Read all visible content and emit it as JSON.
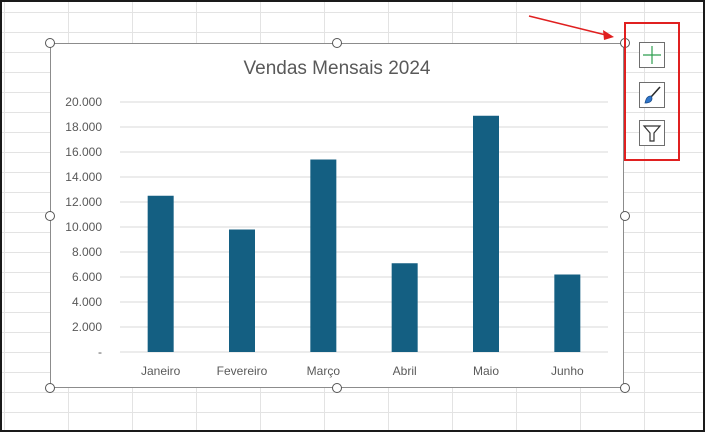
{
  "chart_data": {
    "type": "bar",
    "title": "Vendas Mensais 2024",
    "categories": [
      "Janeiro",
      "Fevereiro",
      "Março",
      "Abril",
      "Maio",
      "Junho"
    ],
    "values": [
      12500,
      9800,
      15400,
      7100,
      18900,
      6200
    ],
    "y_ticks": [
      "-",
      "2.000",
      "4.000",
      "6.000",
      "8.000",
      "10.000",
      "12.000",
      "14.000",
      "16.000",
      "18.000",
      "20.000"
    ],
    "ylim": [
      0,
      20000
    ],
    "grid": true,
    "bar_color": "#145f82"
  },
  "chart_tools": [
    {
      "icon": "plus-icon",
      "name": "chart-elements-button"
    },
    {
      "icon": "paintbrush-icon",
      "name": "chart-styles-button"
    },
    {
      "icon": "funnel-icon",
      "name": "chart-filters-button"
    }
  ],
  "colors": {
    "highlight": "#e02020",
    "bar": "#145f82",
    "gridline": "#d9d9d9"
  }
}
